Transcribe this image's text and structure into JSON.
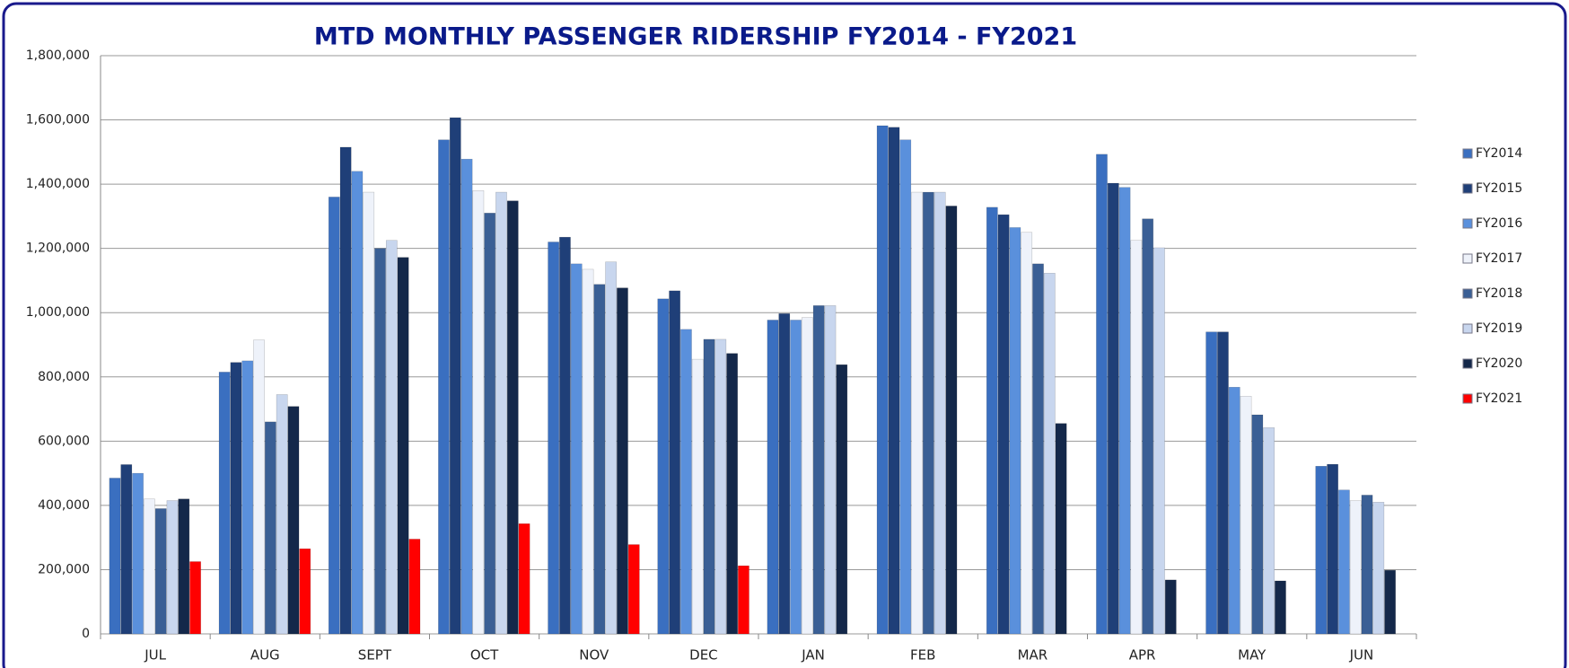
{
  "chart_data": {
    "type": "bar",
    "title": "MTD MONTHLY PASSENGER RIDERSHIP FY2014 - FY2021",
    "categories": [
      "JUL",
      "AUG",
      "SEPT",
      "OCT",
      "NOV",
      "DEC",
      "JAN",
      "FEB",
      "MAR",
      "APR",
      "MAY",
      "JUN"
    ],
    "series": [
      {
        "name": "FY2014",
        "color": "#3a6fc0",
        "values": [
          485000,
          815000,
          1360000,
          1538000,
          1220000,
          1043000,
          977000,
          1582000,
          1328000,
          1493000,
          940000,
          522000
        ]
      },
      {
        "name": "FY2015",
        "color": "#1f3f78",
        "values": [
          527000,
          845000,
          1515000,
          1607000,
          1235000,
          1068000,
          997000,
          1577000,
          1305000,
          1403000,
          940000,
          528000
        ]
      },
      {
        "name": "FY2016",
        "color": "#5a90dc",
        "values": [
          500000,
          850000,
          1440000,
          1478000,
          1152000,
          948000,
          977000,
          1538000,
          1265000,
          1390000,
          768000,
          448000
        ]
      },
      {
        "name": "FY2017",
        "color": "#eef2fa",
        "values": [
          420000,
          915000,
          1375000,
          1380000,
          1135000,
          855000,
          985000,
          1375000,
          1250000,
          1225000,
          740000,
          415000
        ]
      },
      {
        "name": "FY2018",
        "color": "#3a5f95",
        "values": [
          390000,
          660000,
          1200000,
          1310000,
          1088000,
          917000,
          1022000,
          1375000,
          1152000,
          1292000,
          682000,
          432000
        ]
      },
      {
        "name": "FY2019",
        "color": "#c8d6ee",
        "values": [
          415000,
          745000,
          1225000,
          1375000,
          1158000,
          917000,
          1022000,
          1375000,
          1123000,
          1202000,
          642000,
          410000
        ]
      },
      {
        "name": "FY2020",
        "color": "#14284a",
        "values": [
          420000,
          708000,
          1172000,
          1348000,
          1077000,
          873000,
          838000,
          1332000,
          655000,
          168000,
          165000,
          198000
        ]
      },
      {
        "name": "FY2021",
        "color": "#ff0000",
        "values": [
          225000,
          265000,
          295000,
          343000,
          278000,
          212000,
          null,
          null,
          null,
          null,
          null,
          null
        ]
      }
    ],
    "ylim": [
      0,
      1800000
    ],
    "yticks": [
      0,
      {
        "value": 200000,
        "label": "200,000"
      },
      {
        "value": 400000,
        "label": "400,000"
      },
      {
        "value": 600000,
        "label": "600,000"
      },
      {
        "value": 800000,
        "label": "800,000"
      },
      {
        "value": 1000000,
        "label": "1,000,000"
      },
      {
        "value": 1200000,
        "label": "1,200,000"
      },
      {
        "value": 1400000,
        "label": "1,400,000"
      },
      {
        "value": 1600000,
        "label": "1,600,000"
      },
      {
        "value": 1800000,
        "label": "1,800,000"
      }
    ],
    "grid": true,
    "legend": "right"
  }
}
